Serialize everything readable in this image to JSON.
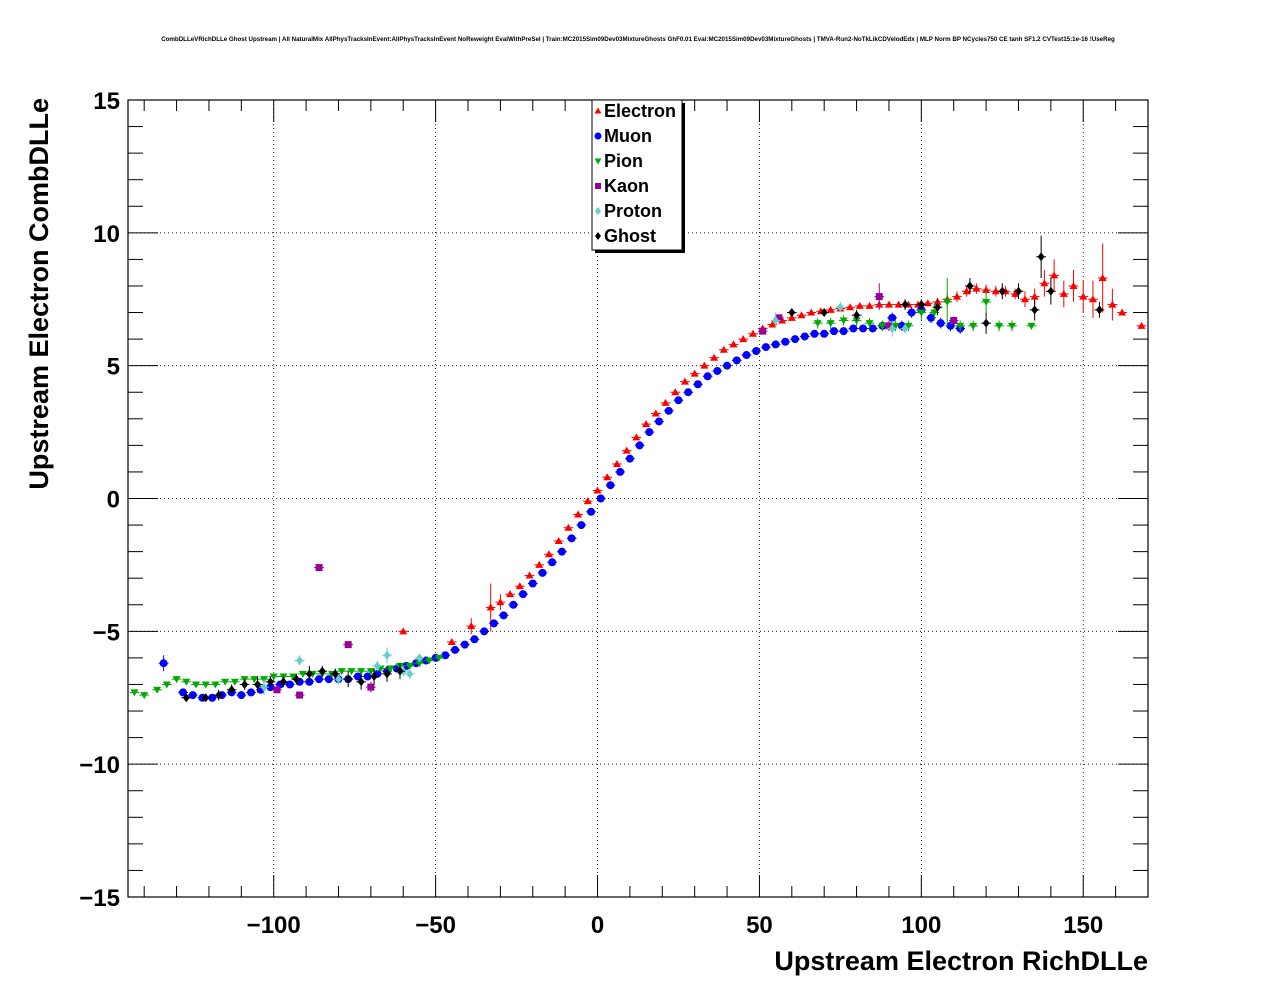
{
  "page": {
    "title": "CombDLLeVRichDLLe Ghost Upstream | All NaturalMix AllPhysTracksInEvent:AllPhysTracksInEvent NoReweight EvalWithPreSel | Train:MC2015Sim09Dev03MixtureGhosts GhF0.01 Eval:MC2015Sim09Dev03MixtureGhosts | TMVA-Run2-NoTkLikCDVelodEdx | MLP Norm BP NCycles750 CE tanh SF1.2 CVTest15:1e-16 !UseReg"
  },
  "chart_data": {
    "type": "scatter",
    "xlabel": "Upstream Electron RichDLLe",
    "ylabel": "Upstream Electron CombDLLe",
    "xlim": [
      -145,
      170
    ],
    "ylim": [
      -15,
      15
    ],
    "x_ticks": [
      -100,
      -50,
      0,
      50,
      100,
      150
    ],
    "y_ticks": [
      -15,
      -10,
      -5,
      0,
      5,
      10,
      15
    ],
    "x_tick_labels": [
      "−100",
      "−50",
      "0",
      "50",
      "100",
      "150"
    ],
    "y_tick_labels": [
      "−15",
      "−10",
      "−5",
      "0",
      "5",
      "10",
      "15"
    ],
    "grid": true,
    "legend_position": "top-center",
    "series": [
      {
        "name": "Electron",
        "color": "#ff0000",
        "marker": "triangle-up",
        "x": [
          -60,
          -45,
          -39,
          -33,
          -30,
          -27,
          -24,
          -21,
          -18,
          -15,
          -12,
          -9,
          -6,
          -3,
          0,
          3,
          6,
          9,
          12,
          15,
          18,
          21,
          24,
          27,
          30,
          33,
          36,
          39,
          42,
          45,
          48,
          51,
          54,
          57,
          60,
          63,
          66,
          69,
          72,
          75,
          78,
          81,
          84,
          87,
          90,
          93,
          96,
          99,
          102,
          105,
          108,
          111,
          114,
          117,
          120,
          123,
          126,
          129,
          132,
          135,
          138,
          141,
          144,
          147,
          150,
          153,
          156,
          159,
          162,
          168
        ],
        "y": [
          -5.0,
          -5.4,
          -4.8,
          -4.1,
          -3.9,
          -3.6,
          -3.3,
          -2.9,
          -2.5,
          -2.1,
          -1.6,
          -1.1,
          -0.6,
          -0.1,
          0.3,
          0.8,
          1.3,
          1.8,
          2.3,
          2.8,
          3.2,
          3.6,
          4.0,
          4.4,
          4.7,
          5.0,
          5.3,
          5.6,
          5.8,
          6.0,
          6.2,
          6.4,
          6.55,
          6.7,
          6.8,
          6.9,
          7.0,
          7.05,
          7.1,
          7.15,
          7.2,
          7.25,
          7.25,
          7.3,
          7.3,
          7.3,
          7.3,
          7.3,
          7.35,
          7.4,
          7.5,
          7.6,
          7.8,
          7.9,
          7.85,
          7.8,
          7.8,
          7.7,
          7.5,
          7.6,
          8.1,
          8.4,
          7.7,
          8.0,
          7.6,
          7.5,
          8.3,
          7.3,
          7.0,
          6.5
        ],
        "y_error": [
          0.1,
          0.1,
          0.3,
          0.9,
          0.3,
          0.1,
          0.1,
          0.1,
          0.1,
          0.1,
          0.1,
          0.1,
          0.1,
          0.1,
          0.1,
          0.1,
          0.1,
          0.1,
          0.1,
          0.1,
          0.1,
          0.1,
          0.1,
          0.1,
          0.1,
          0.1,
          0.1,
          0.1,
          0.1,
          0.1,
          0.1,
          0.1,
          0.1,
          0.1,
          0.1,
          0.1,
          0.1,
          0.1,
          0.1,
          0.1,
          0.1,
          0.1,
          0.1,
          0.1,
          0.1,
          0.1,
          0.1,
          0.1,
          0.1,
          0.15,
          0.2,
          0.2,
          0.2,
          0.2,
          0.2,
          0.2,
          0.2,
          0.2,
          0.3,
          0.3,
          0.5,
          0.6,
          0.5,
          0.6,
          0.6,
          0.7,
          1.3,
          0.6,
          0.1,
          0.1
        ]
      },
      {
        "name": "Muon",
        "color": "#0000ff",
        "marker": "circle",
        "x": [
          -134,
          -128,
          -125,
          -122,
          -119,
          -116,
          -113,
          -110,
          -107,
          -104,
          -101,
          -98,
          -95,
          -92,
          -89,
          -86,
          -83,
          -80,
          -77,
          -74,
          -71,
          -68,
          -65,
          -62,
          -59,
          -56,
          -53,
          -50,
          -47,
          -44,
          -41,
          -38,
          -35,
          -32,
          -29,
          -26,
          -23,
          -20,
          -17,
          -14,
          -11,
          -8,
          -5,
          -2,
          1,
          4,
          7,
          10,
          13,
          16,
          19,
          22,
          25,
          28,
          31,
          34,
          37,
          40,
          43,
          46,
          49,
          52,
          55,
          58,
          61,
          64,
          67,
          70,
          73,
          76,
          79,
          82,
          85,
          88,
          91,
          94,
          97,
          100,
          103,
          106,
          109,
          112
        ],
        "y": [
          -6.2,
          -7.3,
          -7.4,
          -7.5,
          -7.5,
          -7.4,
          -7.3,
          -7.4,
          -7.3,
          -7.2,
          -7.1,
          -7.0,
          -7.0,
          -6.9,
          -6.9,
          -6.8,
          -6.8,
          -6.8,
          -6.8,
          -6.7,
          -6.7,
          -6.6,
          -6.5,
          -6.4,
          -6.3,
          -6.2,
          -6.1,
          -6.0,
          -5.9,
          -5.7,
          -5.5,
          -5.3,
          -5.0,
          -4.7,
          -4.4,
          -4.0,
          -3.6,
          -3.2,
          -2.8,
          -2.4,
          -2.0,
          -1.5,
          -1.0,
          -0.5,
          0.0,
          0.5,
          1.0,
          1.5,
          2.0,
          2.5,
          2.9,
          3.3,
          3.7,
          4.0,
          4.3,
          4.6,
          4.8,
          5.0,
          5.2,
          5.4,
          5.55,
          5.7,
          5.8,
          5.9,
          6.0,
          6.1,
          6.2,
          6.2,
          6.3,
          6.3,
          6.4,
          6.4,
          6.4,
          6.5,
          6.8,
          6.5,
          7.0,
          7.1,
          6.8,
          6.6,
          6.5,
          6.4
        ],
        "y_error": [
          0.3,
          0.1,
          0.1,
          0.1,
          0.1,
          0.1,
          0.1,
          0.1,
          0.1,
          0.1,
          0.1,
          0.1,
          0.1,
          0.1,
          0.1,
          0.1,
          0.1,
          0.1,
          0.1,
          0.1,
          0.1,
          0.1,
          0.1,
          0.1,
          0.1,
          0.1,
          0.1,
          0.1,
          0.1,
          0.1,
          0.1,
          0.1,
          0.1,
          0.1,
          0.1,
          0.1,
          0.1,
          0.1,
          0.1,
          0.1,
          0.1,
          0.1,
          0.1,
          0.1,
          0.1,
          0.1,
          0.1,
          0.1,
          0.1,
          0.1,
          0.1,
          0.1,
          0.1,
          0.1,
          0.1,
          0.1,
          0.1,
          0.1,
          0.1,
          0.1,
          0.1,
          0.1,
          0.1,
          0.1,
          0.1,
          0.1,
          0.1,
          0.1,
          0.1,
          0.1,
          0.1,
          0.1,
          0.1,
          0.2,
          0.2,
          0.2,
          0.2,
          0.2,
          0.2,
          0.2,
          0.2,
          0.2
        ]
      },
      {
        "name": "Pion",
        "color": "#00aa00",
        "marker": "triangle-down",
        "x": [
          -143,
          -140,
          -136,
          -133,
          -130,
          -127,
          -124,
          -121,
          -118,
          -115,
          -112,
          -109,
          -106,
          -103,
          -100,
          -97,
          -94,
          -91,
          -88,
          -85,
          -82,
          -79,
          -76,
          -73,
          -70,
          -67,
          -64,
          -61,
          -58,
          -55,
          -52,
          -49,
          68,
          72,
          76,
          80,
          84,
          88,
          92,
          96,
          100,
          104,
          108,
          112,
          116,
          120,
          124,
          128,
          134
        ],
        "y": [
          -7.3,
          -7.4,
          -7.2,
          -7.0,
          -6.8,
          -6.9,
          -7.0,
          -7.0,
          -7.0,
          -6.9,
          -6.9,
          -6.8,
          -6.8,
          -6.8,
          -6.7,
          -6.7,
          -6.7,
          -6.6,
          -6.6,
          -6.6,
          -6.6,
          -6.5,
          -6.5,
          -6.5,
          -6.5,
          -6.4,
          -6.4,
          -6.3,
          -6.3,
          -6.2,
          -6.1,
          -6.0,
          6.6,
          6.6,
          6.7,
          6.7,
          6.6,
          6.5,
          6.5,
          6.5,
          7.0,
          7.0,
          7.4,
          6.5,
          6.5,
          7.4,
          6.5,
          6.5,
          6.5
        ],
        "y_error": [
          0.1,
          0.1,
          0.1,
          0.1,
          0.1,
          0.1,
          0.1,
          0.1,
          0.1,
          0.1,
          0.1,
          0.1,
          0.1,
          0.1,
          0.1,
          0.1,
          0.1,
          0.1,
          0.1,
          0.1,
          0.1,
          0.1,
          0.1,
          0.1,
          0.1,
          0.1,
          0.1,
          0.1,
          0.1,
          0.1,
          0.1,
          0.1,
          0.2,
          0.2,
          0.2,
          0.2,
          0.2,
          0.2,
          0.2,
          0.2,
          0.3,
          0.3,
          0.9,
          0.2,
          0.2,
          0.4,
          0.2,
          0.2,
          0.1
        ]
      },
      {
        "name": "Kaon",
        "color": "#990099",
        "marker": "square",
        "x": [
          -86,
          -77,
          -70,
          -92,
          -99,
          51,
          56,
          87,
          90,
          110
        ],
        "y": [
          -2.6,
          -5.5,
          -7.1,
          -7.4,
          -7.2,
          6.3,
          6.8,
          7.6,
          6.5,
          6.7
        ],
        "y_error": [
          0.1,
          0.1,
          0.2,
          0.1,
          0.1,
          0.1,
          0.1,
          0.5,
          0.2,
          0.1
        ]
      },
      {
        "name": "Proton",
        "color": "#66cccc",
        "marker": "diamond",
        "x": [
          -92,
          -65,
          -68,
          -60,
          -58,
          -55,
          -103,
          -80,
          55,
          75,
          91,
          95
        ],
        "y": [
          -6.1,
          -5.9,
          -6.3,
          -6.5,
          -6.6,
          -6.0,
          -7.1,
          -6.8,
          6.7,
          7.2,
          6.4,
          6.4
        ],
        "y_error": [
          0.2,
          0.3,
          0.2,
          0.2,
          0.2,
          0.1,
          0.3,
          0.2,
          0.3,
          0.2,
          0.3,
          0.2
        ]
      },
      {
        "name": "Ghost",
        "color": "#000000",
        "marker": "diamond",
        "x": [
          -127,
          -121,
          -117,
          -113,
          -109,
          -105,
          -101,
          -97,
          -93,
          -89,
          -85,
          -81,
          -77,
          -73,
          -69,
          -65,
          -61,
          60,
          70,
          80,
          95,
          100,
          105,
          115,
          120,
          125,
          130,
          135,
          137,
          140,
          155
        ],
        "y": [
          -7.5,
          -7.5,
          -7.4,
          -7.2,
          -7.0,
          -7.0,
          -6.9,
          -6.9,
          -6.8,
          -6.6,
          -6.5,
          -6.6,
          -6.8,
          -6.9,
          -6.7,
          -6.6,
          -6.5,
          7.0,
          7.0,
          6.9,
          7.3,
          7.3,
          7.2,
          8.0,
          6.6,
          7.8,
          7.8,
          7.1,
          9.1,
          7.8,
          7.1
        ],
        "y_error": [
          0.1,
          0.1,
          0.2,
          0.2,
          0.2,
          0.3,
          0.2,
          0.2,
          0.2,
          0.3,
          0.2,
          0.2,
          0.3,
          0.3,
          0.3,
          0.3,
          0.3,
          0.1,
          0.1,
          0.2,
          0.2,
          0.2,
          0.3,
          0.3,
          0.4,
          0.3,
          0.3,
          0.4,
          0.8,
          0.5,
          0.3
        ]
      }
    ]
  }
}
